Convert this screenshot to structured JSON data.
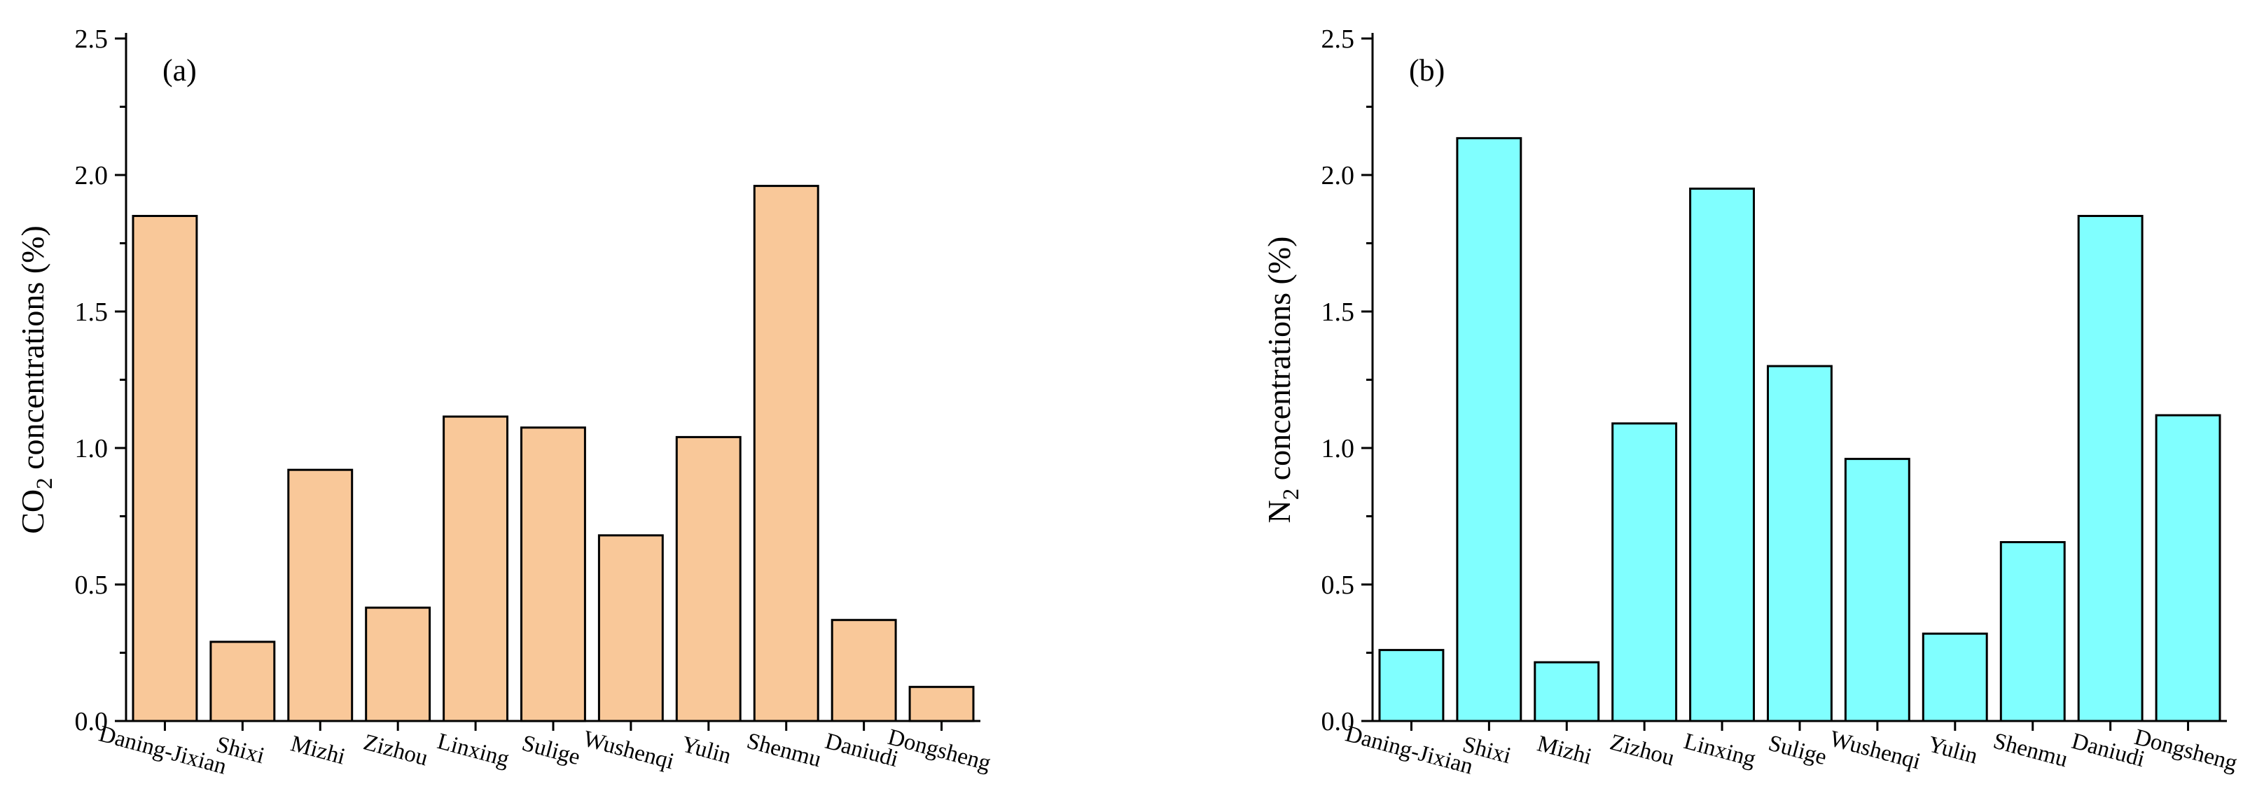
{
  "chart_data": [
    {
      "type": "bar",
      "panel_label": "(a)",
      "ylabel": {
        "main": "CO",
        "sub": "2",
        "rest": " concentrations (%)"
      },
      "ylim": [
        0,
        2.5
      ],
      "yticks": [
        "0.0",
        "0.5",
        "1.0",
        "1.5",
        "2.0",
        "2.5"
      ],
      "color": "#F9C899",
      "categories": [
        "Daning-Jixian",
        "Shixi",
        "Mizhi",
        "Zizhou",
        "Linxing",
        "Sulige",
        "Wushenqi",
        "Yulin",
        "Shenmu",
        "Daniudi",
        "Dongsheng"
      ],
      "values": [
        1.85,
        0.29,
        0.92,
        0.415,
        1.115,
        1.075,
        0.68,
        1.04,
        1.96,
        0.37,
        0.125
      ]
    },
    {
      "type": "bar",
      "panel_label": "(b)",
      "ylabel": {
        "main": "N",
        "sub": "2",
        "rest": " concentrations (%)"
      },
      "ylim": [
        0,
        2.5
      ],
      "yticks": [
        "0.0",
        "0.5",
        "1.0",
        "1.5",
        "2.0",
        "2.5"
      ],
      "color": "#80FFFF",
      "categories": [
        "Daning-Jixian",
        "Shixi",
        "Mizhi",
        "Zizhou",
        "Linxing",
        "Sulige",
        "Wushenqi",
        "Yulin",
        "Shenmu",
        "Daniudi",
        "Dongsheng"
      ],
      "values": [
        0.26,
        2.135,
        0.215,
        1.09,
        1.95,
        1.3,
        0.96,
        0.32,
        0.655,
        1.85,
        1.12
      ]
    }
  ]
}
